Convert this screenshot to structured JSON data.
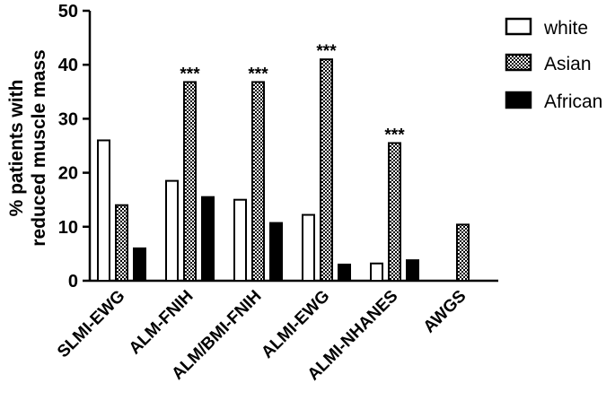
{
  "chart_data": {
    "type": "bar",
    "ylabel": "% patients with\nreduced muscle mass",
    "ylim": [
      0,
      50
    ],
    "yticks": [
      0,
      10,
      20,
      30,
      40,
      50
    ],
    "categories": [
      "SLMI-EWG",
      "ALM-FNIH",
      "ALM/BMI-FNIH",
      "ALMI-EWG",
      "ALMI-NHANES",
      "AWGS"
    ],
    "series": [
      {
        "name": "white",
        "fill": "white",
        "values": [
          26,
          18.5,
          15,
          12.2,
          3.2,
          null
        ]
      },
      {
        "name": "Asian",
        "fill": "checker",
        "values": [
          14,
          36.8,
          36.8,
          41,
          25.5,
          10.4
        ]
      },
      {
        "name": "African",
        "fill": "black",
        "values": [
          6,
          15.5,
          10.7,
          3,
          3.8,
          null
        ]
      }
    ],
    "annotations": [
      {
        "category": "ALM-FNIH",
        "series": "Asian",
        "text": "***"
      },
      {
        "category": "ALM/BMI-FNIH",
        "series": "Asian",
        "text": "***"
      },
      {
        "category": "ALMI-EWG",
        "series": "Asian",
        "text": "***"
      },
      {
        "category": "ALMI-NHANES",
        "series": "Asian",
        "text": "***"
      }
    ],
    "legend": "top-right",
    "grid": false
  }
}
